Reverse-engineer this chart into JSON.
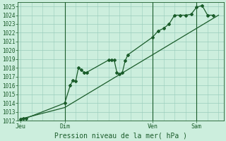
{
  "xlabel": "Pression niveau de la mer( hPa )",
  "background_color": "#cceedd",
  "grid_color": "#99ccbb",
  "line_color": "#1a5c2a",
  "ylim": [
    1012,
    1025.5
  ],
  "yticks": [
    1012,
    1013,
    1014,
    1015,
    1016,
    1017,
    1018,
    1019,
    1020,
    1021,
    1022,
    1023,
    1024,
    1025
  ],
  "xtick_labels": [
    "Jeu",
    "Dim",
    "Ven",
    "Sam"
  ],
  "xtick_positions": [
    0,
    16,
    48,
    64
  ],
  "vlines": [
    16,
    48,
    64
  ],
  "series1_x": [
    0,
    1,
    2,
    16,
    18,
    19,
    20,
    21,
    22,
    23,
    24,
    32,
    33,
    34,
    35,
    36,
    37,
    38,
    39,
    48,
    50,
    52,
    54,
    56,
    58,
    60,
    62,
    64,
    66,
    68,
    70
  ],
  "series1_y": [
    1012.2,
    1012.3,
    1012.3,
    1014.0,
    1016.0,
    1016.6,
    1016.5,
    1018.0,
    1017.8,
    1017.5,
    1017.5,
    1018.9,
    1018.9,
    1018.9,
    1017.5,
    1017.3,
    1017.5,
    1018.8,
    1019.5,
    1021.5,
    1022.2,
    1022.5,
    1023.0,
    1024.0,
    1024.0,
    1024.0,
    1024.1,
    1024.9,
    1025.1,
    1024.0,
    1024.0
  ],
  "series2_x": [
    0,
    16,
    32,
    48,
    64,
    72
  ],
  "series2_y": [
    1012.2,
    1013.5,
    1016.5,
    1019.5,
    1022.5,
    1024.0
  ],
  "xlim": [
    -1,
    74
  ]
}
